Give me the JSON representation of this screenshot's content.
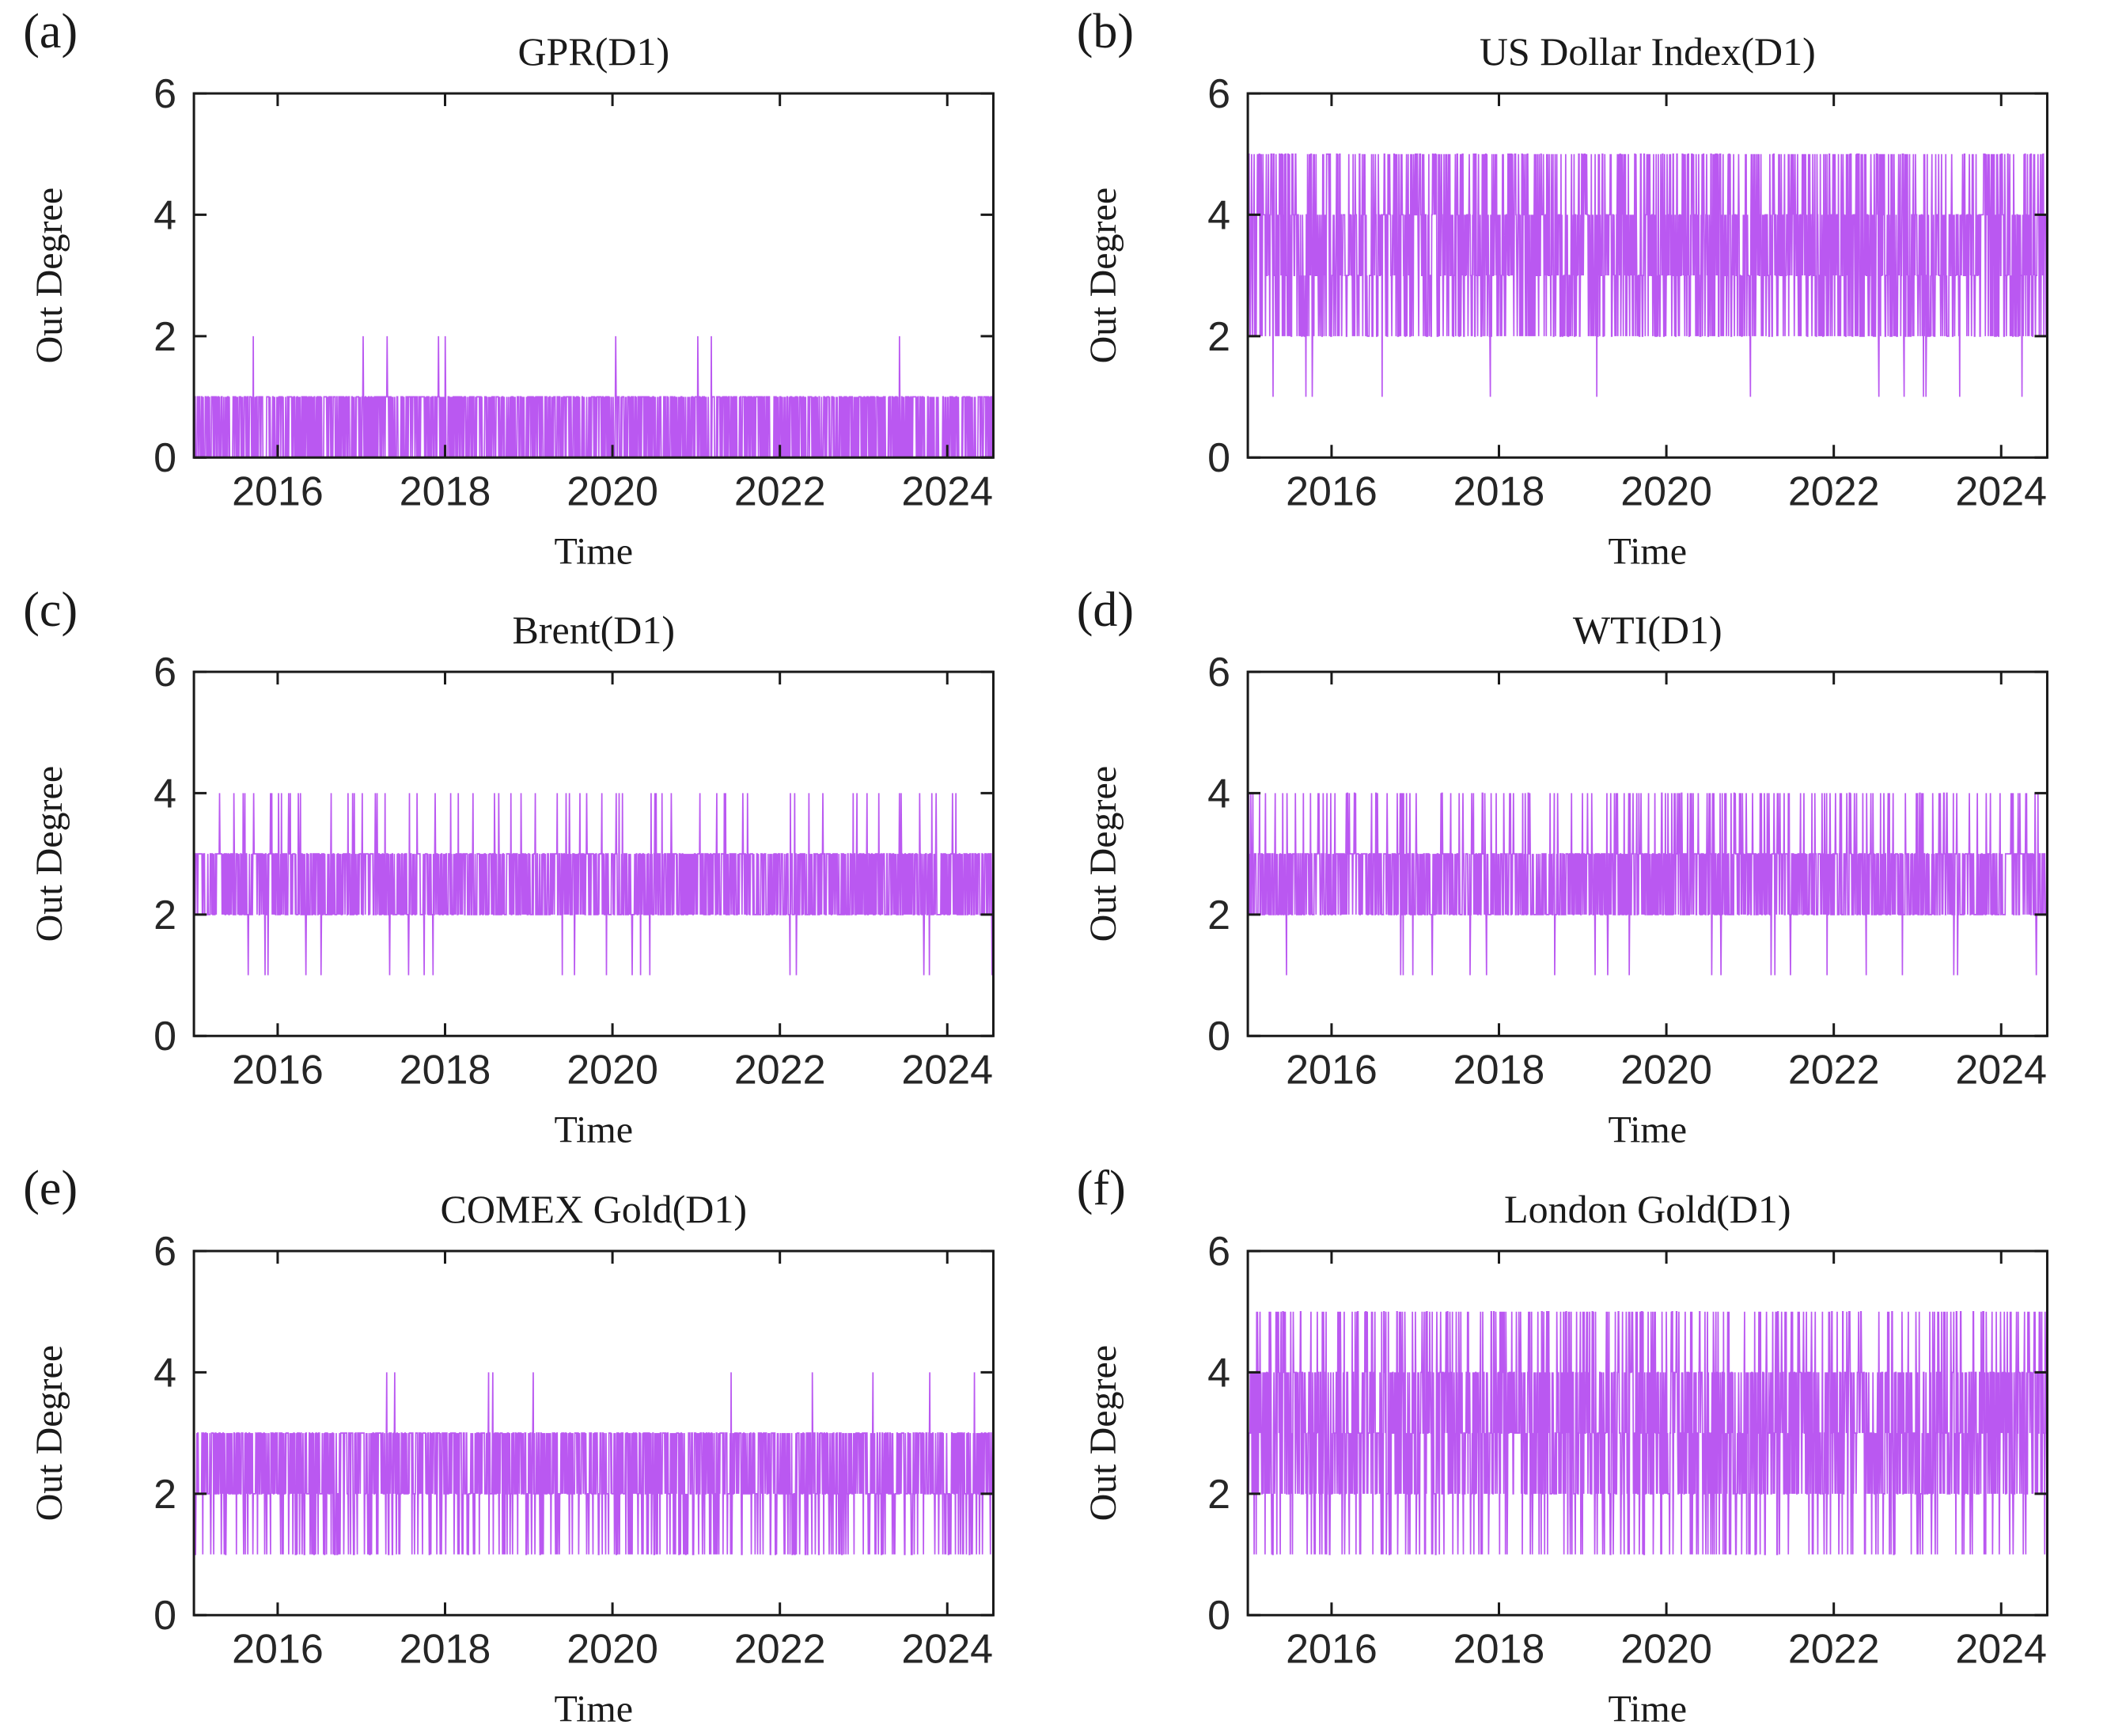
{
  "figure": {
    "background": "#ffffff",
    "series_color": "#b44af0",
    "axis_color": "#1a1a1a",
    "text_color": "#1a1a1a"
  },
  "chart_data": [
    {
      "panel_label": "(a)",
      "type": "line",
      "title": "GPR(D1)",
      "xlabel": "Time",
      "ylabel": "Out Degree",
      "xlim": [
        2015.0,
        2024.55
      ],
      "ylim": [
        0,
        6
      ],
      "xticks": [
        2016,
        2018,
        2020,
        2022,
        2024
      ],
      "yticks": [
        0,
        2,
        4,
        6
      ],
      "color": "#b44af0",
      "description": "Dense oscillating band between 0 and 1 for the whole period, with rare isolated spikes to 2.",
      "pattern": {
        "samples": 1900,
        "base": [
          0,
          1
        ],
        "extras": [],
        "events": [
          {
            "value": 2,
            "times": [
              2015.71,
              2017.02,
              2017.31,
              2017.92,
              2018.0,
              2020.04,
              2021.02,
              2021.18,
              2023.43
            ]
          }
        ]
      }
    },
    {
      "panel_label": "(b)",
      "type": "line",
      "title": "US Dollar Index(D1)",
      "xlabel": "Time",
      "ylabel": "Out Degree",
      "xlim": [
        2015.0,
        2024.55
      ],
      "ylim": [
        0,
        6
      ],
      "xticks": [
        2016,
        2018,
        2020,
        2022,
        2024
      ],
      "yticks": [
        0,
        2,
        4,
        6
      ],
      "color": "#b44af0",
      "description": "Solid band between 3 and 4, very frequent spikes up to 5 and dips to 2 across all years, occasional isolated dips to 1.",
      "pattern": {
        "samples": 1900,
        "base": [
          3,
          4
        ],
        "extras": [
          {
            "value": 5,
            "prob": 0.22
          },
          {
            "value": 2,
            "prob": 0.3
          },
          {
            "value": 1,
            "prob": 0.012
          }
        ],
        "events": []
      }
    },
    {
      "panel_label": "(c)",
      "type": "line",
      "title": "Brent(D1)",
      "xlabel": "Time",
      "ylabel": "Out Degree",
      "xlim": [
        2015.0,
        2024.55
      ],
      "ylim": [
        0,
        6
      ],
      "xticks": [
        2016,
        2018,
        2020,
        2022,
        2024
      ],
      "yticks": [
        0,
        2,
        4,
        6
      ],
      "color": "#b44af0",
      "description": "Solid band between 2 and 3, moderately frequent thin spikes to 4, sparse dips to 1.",
      "pattern": {
        "samples": 1900,
        "base": [
          2,
          3
        ],
        "extras": [
          {
            "value": 4,
            "prob": 0.035
          },
          {
            "value": 1,
            "prob": 0.01
          }
        ],
        "events": []
      }
    },
    {
      "panel_label": "(d)",
      "type": "line",
      "title": "WTI(D1)",
      "xlabel": "Time",
      "ylabel": "Out Degree",
      "xlim": [
        2015.0,
        2024.55
      ],
      "ylim": [
        0,
        6
      ],
      "xticks": [
        2016,
        2018,
        2020,
        2022,
        2024
      ],
      "yticks": [
        0,
        2,
        4,
        6
      ],
      "color": "#b44af0",
      "description": "Solid band between 2 and 3 with very frequent spikes to 4 and scattered dips to 1 (mostly before 2020).",
      "pattern": {
        "samples": 1900,
        "base": [
          2,
          3
        ],
        "extras": [
          {
            "value": 4,
            "prob": 0.1
          },
          {
            "value": 1,
            "prob": 0.015
          }
        ],
        "events": []
      }
    },
    {
      "panel_label": "(e)",
      "type": "line",
      "title": "COMEX Gold(D1)",
      "xlabel": "Time",
      "ylabel": "Out Degree",
      "xlim": [
        2015.0,
        2024.55
      ],
      "ylim": [
        0,
        6
      ],
      "xticks": [
        2016,
        2018,
        2020,
        2022,
        2024
      ],
      "yticks": [
        0,
        2,
        4,
        6
      ],
      "color": "#b44af0",
      "description": "Solid band between 2 and 3, very frequent dips to 1 across all years, sparse isolated spikes to 4.",
      "pattern": {
        "samples": 1900,
        "base": [
          2,
          3
        ],
        "extras": [
          {
            "value": 1,
            "prob": 0.13
          },
          {
            "value": 4,
            "prob": 0.01
          }
        ],
        "events": []
      }
    },
    {
      "panel_label": "(f)",
      "type": "line",
      "title": "London Gold(D1)",
      "xlabel": "Time",
      "ylabel": "Out Degree",
      "xlim": [
        2015.0,
        2024.55
      ],
      "ylim": [
        0,
        6
      ],
      "xticks": [
        2016,
        2018,
        2020,
        2022,
        2024
      ],
      "yticks": [
        0,
        2,
        4,
        6
      ],
      "color": "#b44af0",
      "description": "Solid band between 2 and 4, frequent spikes to 5 and frequent dips to 1 across all years.",
      "pattern": {
        "samples": 1900,
        "base": [
          2,
          4
        ],
        "extras": [
          {
            "value": 5,
            "prob": 0.13
          },
          {
            "value": 1,
            "prob": 0.1
          }
        ],
        "events": []
      }
    }
  ]
}
